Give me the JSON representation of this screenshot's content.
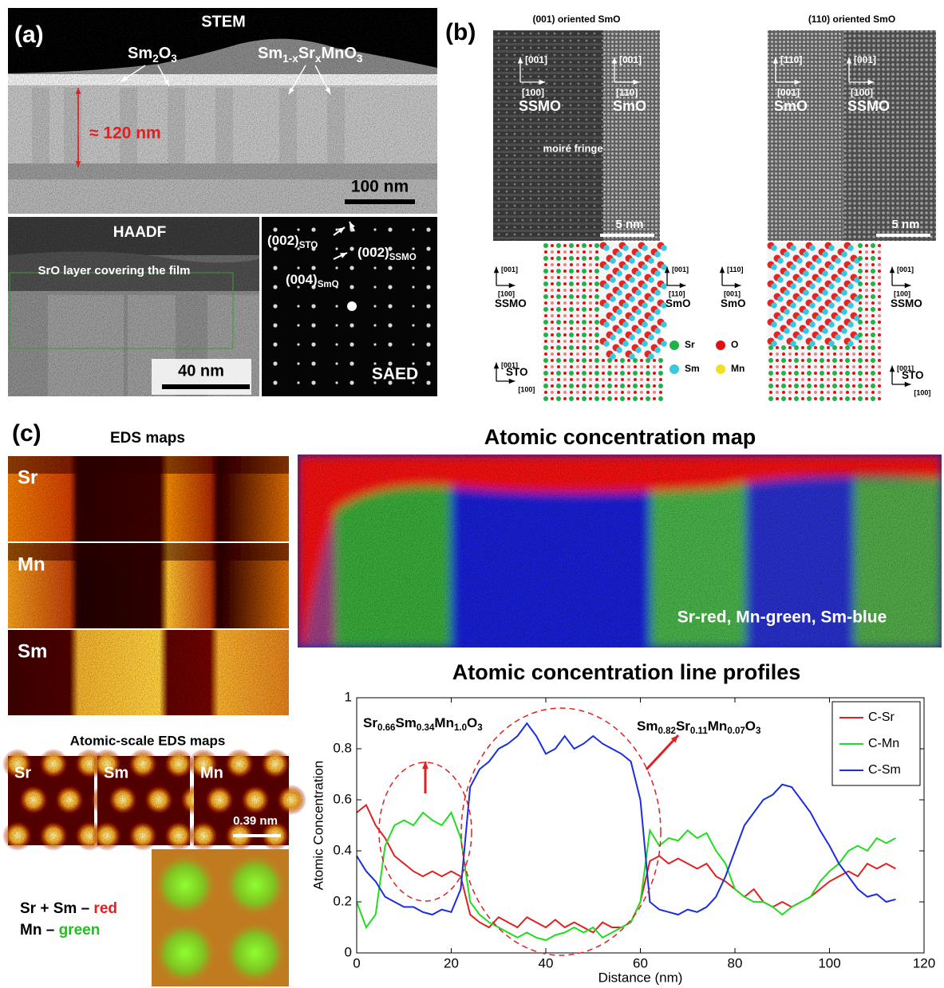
{
  "panel_a": {
    "label": "(a)",
    "stem": "STEM",
    "sm2o3": [
      "Sm",
      "2",
      "O",
      "3"
    ],
    "ssmo": [
      "Sm",
      "1-x",
      "Sr",
      "x",
      "MnO",
      "3"
    ],
    "thickness": "≈ 120 nm",
    "scale_stem": "100 nm",
    "haadf": "HAADF",
    "sro_layer": "SrO layer covering the film",
    "scale_haadf": "40 nm",
    "spot_sto": [
      "(002)",
      "STO"
    ],
    "spot_ssmo": [
      "(002)",
      "SSMO"
    ],
    "spot_smo": [
      "(004)",
      "SmO"
    ],
    "saed": "SAED"
  },
  "panel_b": {
    "label": "(b)",
    "images": [
      {
        "title": "(001) oriented SmO",
        "axes": [
          {
            "up": "[001]",
            "right": "[100]",
            "name": "SSMO"
          },
          {
            "up": "[001]",
            "right": "[110]",
            "name": "SmO"
          }
        ],
        "note": "moiré fringe",
        "scale": "5 nm"
      },
      {
        "title": "(110) oriented SmO",
        "axes": [
          {
            "up": "[110]",
            "right": "[001]",
            "name": "SmO"
          },
          {
            "up": "[001]",
            "right": "[100]",
            "name": "SSMO"
          }
        ],
        "scale": "5 nm"
      }
    ],
    "models": [
      {
        "axes": [
          {
            "up": "[001]",
            "right": "[100]",
            "name": "SSMO"
          },
          {
            "up": "[001]",
            "right": "[110]",
            "name": "SmO"
          },
          {
            "up": "[001]",
            "right": "[100]",
            "name": "STO"
          }
        ]
      },
      {
        "axes": [
          {
            "up": "[110]",
            "right": "[001]",
            "name": "SmO"
          },
          {
            "up": "[001]",
            "right": "[100]",
            "name": "SSMO"
          },
          {
            "up": "[001]",
            "right": "[100]",
            "name": "STO"
          }
        ]
      }
    ],
    "legend": [
      {
        "name": "Sr",
        "color": "#22b04a"
      },
      {
        "name": "O",
        "color": "#e01010"
      },
      {
        "name": "Sm",
        "color": "#38c8e0"
      },
      {
        "name": "Mn",
        "color": "#f0e020"
      }
    ]
  },
  "panel_c": {
    "label": "(c)",
    "eds_title": "EDS maps",
    "eds_maps": [
      "Sr",
      "Mn",
      "Sm"
    ],
    "map_title": "Atomic concentration map",
    "map_caption": "Sr-red, Mn-green, Sm-blue",
    "atomic_title": "Atomic-scale EDS maps",
    "atomic_maps": [
      "Sr",
      "Sm",
      "Mn"
    ],
    "atomic_scale": "0.39 nm",
    "overlay_legend": [
      [
        "Sr + Sm – ",
        "red"
      ],
      [
        "Mn – ",
        "green"
      ]
    ]
  },
  "chart_data": {
    "type": "line",
    "title": "Atomic concentration line profiles",
    "x_label": "Distance (nm)",
    "y_label": "Atomic Concentration",
    "xlim": [
      0,
      120
    ],
    "xticks": [
      0,
      20,
      40,
      60,
      80,
      100,
      120
    ],
    "ylim": [
      0,
      1
    ],
    "yticks": [
      0,
      0.2,
      0.4,
      0.6,
      0.8,
      1
    ],
    "legend": "upper right",
    "annotations": [
      [
        "Sr",
        "0.66",
        "Sm",
        "0.34",
        "Mn",
        "1.0",
        "O",
        "3"
      ],
      [
        "Sm",
        "0.82",
        "Sr",
        "0.11",
        "Mn",
        "0.07",
        "O",
        "3"
      ]
    ],
    "x": [
      0,
      2,
      4,
      6,
      8,
      10,
      12,
      14,
      16,
      18,
      20,
      22,
      24,
      26,
      28,
      30,
      32,
      34,
      36,
      38,
      40,
      42,
      44,
      46,
      48,
      50,
      52,
      54,
      56,
      58,
      60,
      62,
      64,
      66,
      68,
      70,
      72,
      74,
      76,
      78,
      80,
      82,
      84,
      86,
      88,
      90,
      92,
      94,
      96,
      98,
      100,
      102,
      104,
      106,
      108,
      110,
      112,
      114
    ],
    "series": [
      {
        "name": "C-Sr",
        "color": "#e02020",
        "values": [
          0.55,
          0.58,
          0.5,
          0.45,
          0.38,
          0.35,
          0.32,
          0.3,
          0.32,
          0.3,
          0.32,
          0.3,
          0.15,
          0.12,
          0.1,
          0.14,
          0.12,
          0.1,
          0.14,
          0.12,
          0.1,
          0.13,
          0.1,
          0.12,
          0.1,
          0.08,
          0.12,
          0.1,
          0.1,
          0.12,
          0.2,
          0.36,
          0.38,
          0.35,
          0.37,
          0.35,
          0.33,
          0.35,
          0.3,
          0.28,
          0.25,
          0.22,
          0.25,
          0.2,
          0.18,
          0.2,
          0.18,
          0.2,
          0.22,
          0.25,
          0.28,
          0.3,
          0.32,
          0.3,
          0.35,
          0.33,
          0.35,
          0.33
        ]
      },
      {
        "name": "C-Mn",
        "color": "#20dd20",
        "values": [
          0.2,
          0.1,
          0.15,
          0.42,
          0.5,
          0.52,
          0.5,
          0.55,
          0.52,
          0.5,
          0.55,
          0.45,
          0.2,
          0.15,
          0.12,
          0.1,
          0.08,
          0.06,
          0.08,
          0.06,
          0.05,
          0.07,
          0.08,
          0.1,
          0.08,
          0.1,
          0.06,
          0.08,
          0.1,
          0.12,
          0.2,
          0.48,
          0.42,
          0.45,
          0.44,
          0.48,
          0.45,
          0.47,
          0.4,
          0.35,
          0.25,
          0.22,
          0.2,
          0.2,
          0.18,
          0.15,
          0.18,
          0.2,
          0.22,
          0.28,
          0.32,
          0.35,
          0.4,
          0.42,
          0.4,
          0.45,
          0.43,
          0.45
        ]
      },
      {
        "name": "C-Sm",
        "color": "#1a2ee0",
        "values": [
          0.38,
          0.32,
          0.28,
          0.22,
          0.2,
          0.18,
          0.18,
          0.16,
          0.15,
          0.17,
          0.16,
          0.25,
          0.65,
          0.72,
          0.75,
          0.8,
          0.82,
          0.85,
          0.9,
          0.85,
          0.78,
          0.8,
          0.85,
          0.8,
          0.82,
          0.85,
          0.82,
          0.8,
          0.78,
          0.75,
          0.6,
          0.2,
          0.17,
          0.16,
          0.15,
          0.17,
          0.16,
          0.18,
          0.22,
          0.3,
          0.4,
          0.5,
          0.55,
          0.6,
          0.62,
          0.66,
          0.65,
          0.6,
          0.55,
          0.48,
          0.42,
          0.35,
          0.3,
          0.25,
          0.22,
          0.23,
          0.2,
          0.21
        ]
      }
    ]
  }
}
